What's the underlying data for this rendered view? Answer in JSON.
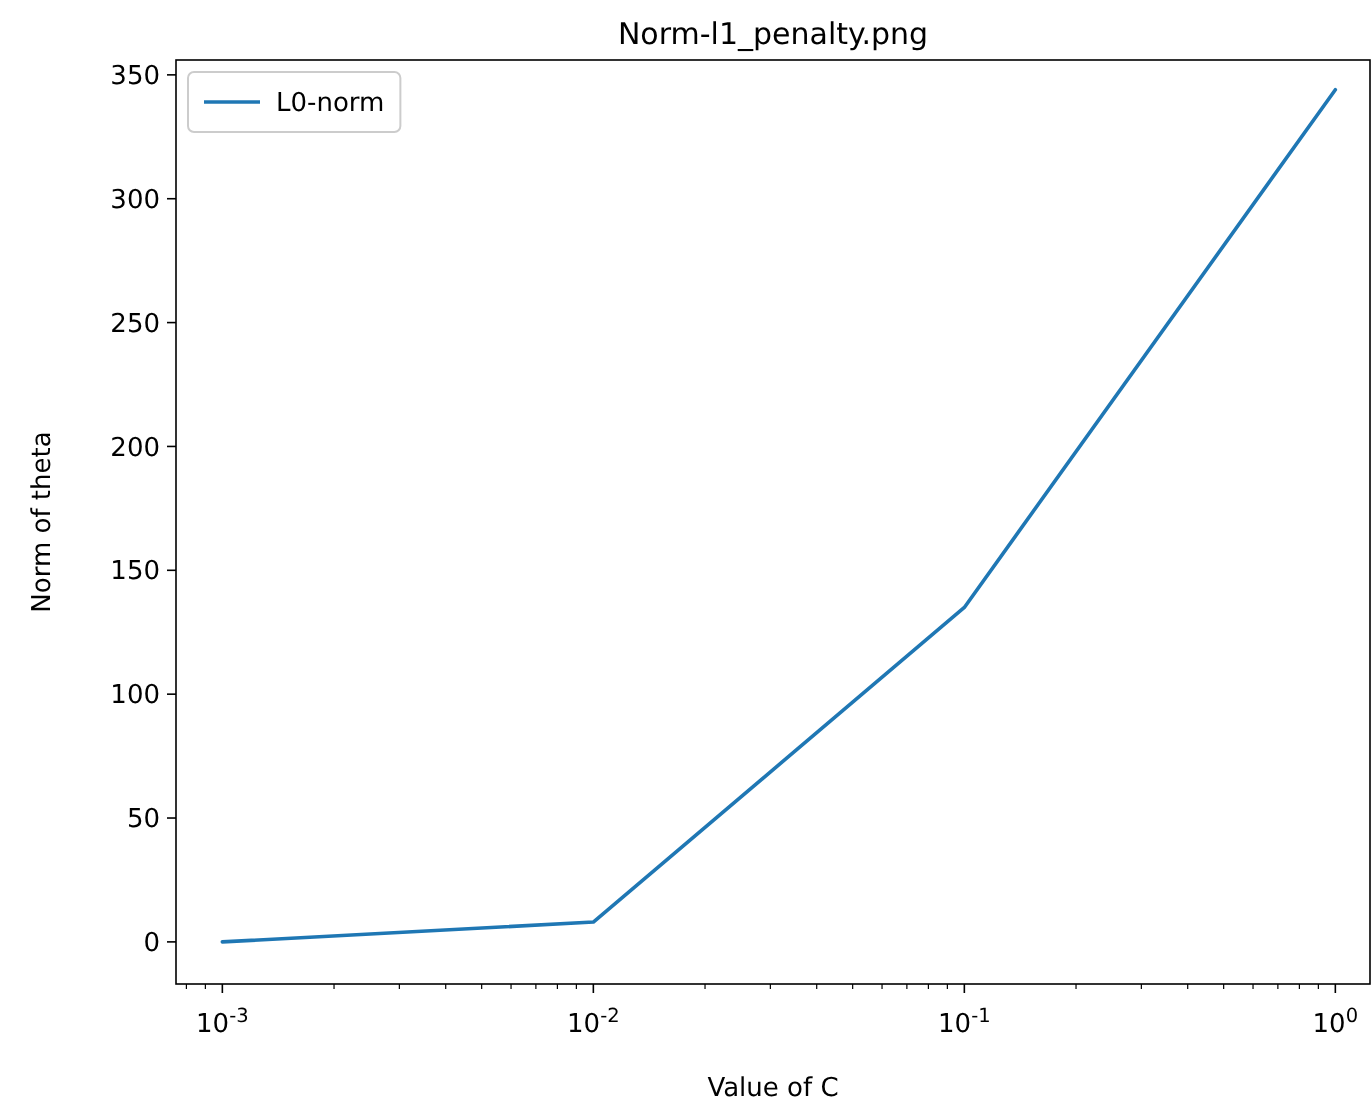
{
  "chart_data": {
    "type": "line",
    "title": "Norm-l1_penalty.png",
    "xlabel": "Value of C",
    "ylabel": "Norm of theta",
    "x": [
      0.001,
      0.01,
      0.1,
      1
    ],
    "series": [
      {
        "name": "L0-norm",
        "color": "#1f77b4",
        "values": [
          0,
          8,
          135,
          344
        ]
      }
    ],
    "log": "x",
    "xlim": [
      0.00075,
      1.24
    ],
    "ylim": [
      -17,
      356
    ],
    "xticks": [
      {
        "value": 0.0008,
        "label": null
      },
      {
        "value": 0.0009,
        "label": null
      },
      {
        "value": 0.001,
        "label": "10$^{-3}$"
      },
      {
        "value": 0.002,
        "label": null
      },
      {
        "value": 0.003,
        "label": null
      },
      {
        "value": 0.004,
        "label": null
      },
      {
        "value": 0.005,
        "label": null
      },
      {
        "value": 0.006,
        "label": null
      },
      {
        "value": 0.007,
        "label": null
      },
      {
        "value": 0.008,
        "label": null
      },
      {
        "value": 0.009,
        "label": null
      },
      {
        "value": 0.01,
        "label": "10$^{-2}$"
      },
      {
        "value": 0.02,
        "label": null
      },
      {
        "value": 0.03,
        "label": null
      },
      {
        "value": 0.04,
        "label": null
      },
      {
        "value": 0.05,
        "label": null
      },
      {
        "value": 0.06,
        "label": null
      },
      {
        "value": 0.07,
        "label": null
      },
      {
        "value": 0.08,
        "label": null
      },
      {
        "value": 0.09,
        "label": null
      },
      {
        "value": 0.1,
        "label": "10$^{-1}$"
      },
      {
        "value": 0.2,
        "label": null
      },
      {
        "value": 0.3,
        "label": null
      },
      {
        "value": 0.4,
        "label": null
      },
      {
        "value": 0.5,
        "label": null
      },
      {
        "value": 0.6,
        "label": null
      },
      {
        "value": 0.7,
        "label": null
      },
      {
        "value": 0.8,
        "label": null
      },
      {
        "value": 0.9,
        "label": null
      },
      {
        "value": 1,
        "label": "10$^{0}$"
      }
    ],
    "yticks": [
      0,
      50,
      100,
      150,
      200,
      250,
      300,
      350
    ],
    "legend": "top left",
    "grid": false,
    "line_style": "solid",
    "marker": "none"
  }
}
